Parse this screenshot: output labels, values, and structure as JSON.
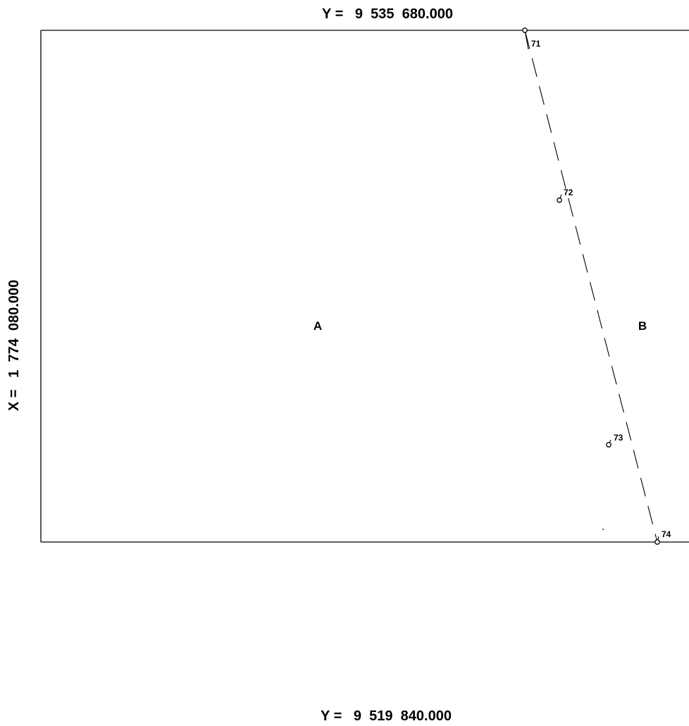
{
  "map": {
    "top_coordinate": "Y =   9  535  680.000",
    "bottom_coordinate": "Y =   9  519  840.000",
    "left_coordinate": "X =   1  774  080.000",
    "zones": [
      {
        "label": "A"
      },
      {
        "label": "B"
      }
    ],
    "points": [
      {
        "label": "71"
      },
      {
        "label": "72"
      },
      {
        "label": "73"
      },
      {
        "label": "74"
      }
    ]
  }
}
